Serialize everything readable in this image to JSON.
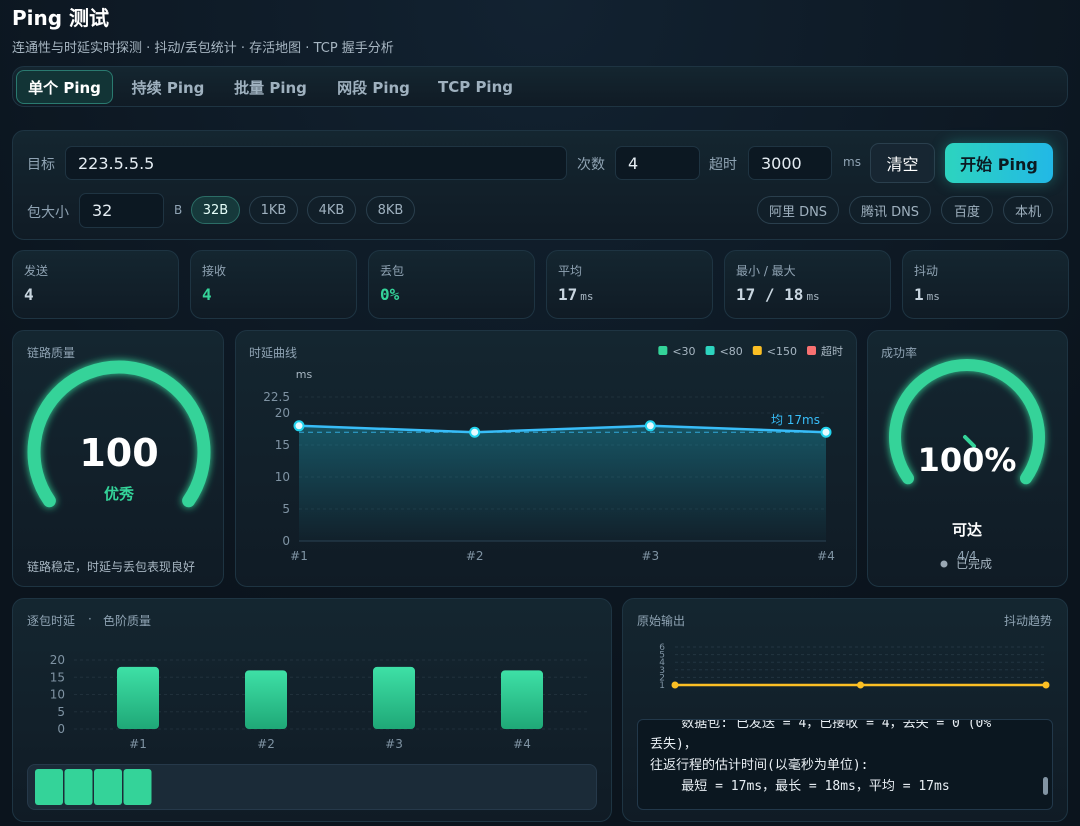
{
  "header": {
    "title": "Ping 测试",
    "subtitle": "连通性与时延实时探测 · 抖动/丢包统计 · 存活地图 · TCP 握手分析"
  },
  "tabs": [
    "单个 Ping",
    "持续 Ping",
    "批量 Ping",
    "网段 Ping",
    "TCP Ping"
  ],
  "active_tab": 0,
  "form": {
    "target_label": "目标",
    "target": "223.5.5.5",
    "count_label": "次数",
    "count": 4,
    "timeout_label": "超时",
    "timeout": 3000,
    "timeout_unit": "ms",
    "clear": "清空",
    "start": "开始 Ping",
    "size_label": "包大小",
    "size": 32,
    "size_unit": "B",
    "size_presets": [
      "32B",
      "1KB",
      "4KB",
      "8KB"
    ],
    "size_active": 0,
    "dns_presets": [
      "阿里 DNS",
      "腾讯 DNS",
      "百度",
      "本机"
    ]
  },
  "stats": [
    {
      "label": "发送",
      "value": 4
    },
    {
      "label": "接收",
      "value": 4,
      "color": "#34d399"
    },
    {
      "label": "丢包",
      "value": "0%",
      "color": "#34d399"
    },
    {
      "label": "平均",
      "value": 17,
      "unit": "ms"
    },
    {
      "label": "最小 / 最大",
      "value": "17 / 18",
      "unit": "ms"
    },
    {
      "label": "抖动",
      "value": 1,
      "unit": "ms"
    }
  ],
  "quality": {
    "title": "链路质量",
    "score": 100,
    "range": [
      0,
      100
    ],
    "grade": "优秀",
    "note": "链路稳定，时延与丢包表现良好",
    "color": "#34d399"
  },
  "latency_chart": {
    "type": "line",
    "title": "时延曲线",
    "y_label": "ms",
    "legend": [
      {
        "name": "<30",
        "color": "#34d399"
      },
      {
        "name": "<80",
        "color": "#2dd4bf"
      },
      {
        "name": "<150",
        "color": "#fbbf24"
      },
      {
        "name": "超时",
        "color": "#f87171"
      }
    ],
    "categories": [
      "#1",
      "#2",
      "#3",
      "#4"
    ],
    "values": [
      18,
      17,
      18,
      17
    ],
    "color": "#38bdf8",
    "ylim": [
      0,
      22.5
    ],
    "yticks": [
      0,
      5,
      10,
      15,
      20,
      22.5
    ],
    "avg": 17,
    "avg_label": "均 17ms"
  },
  "success": {
    "title": "成功率",
    "value": 100,
    "range": [
      0,
      100
    ],
    "value_label": "100%",
    "status": "可达",
    "count": "4/4",
    "note": "已完成",
    "color": "#34d399"
  },
  "per_packet": {
    "type": "bar",
    "title": "逐包时延",
    "separator": "·",
    "subtitle": "色阶质量",
    "categories": [
      "#1",
      "#2",
      "#3",
      "#4"
    ],
    "values": [
      18,
      17,
      18,
      17
    ],
    "color": "#34d399",
    "ylim": [
      0,
      20
    ],
    "yticks": [
      0,
      5,
      10,
      15,
      20
    ]
  },
  "raw_output": {
    "title": "原始输出",
    "jitter_title": "抖动趋势",
    "jitter": {
      "type": "line",
      "values": [
        1,
        1,
        1
      ],
      "color": "#fbbf24",
      "ylim": [
        1,
        6
      ],
      "yticks": [
        1,
        2,
        3,
        4,
        5,
        6
      ]
    },
    "lines": [
      "    数据包: 已发送 = 4，已接收 = 4，丢失 = 0 (0%",
      "丢失)，",
      "往返行程的估计时间(以毫秒为单位):",
      "    最短 = 17ms，最长 = 18ms，平均 = 17ms"
    ]
  }
}
